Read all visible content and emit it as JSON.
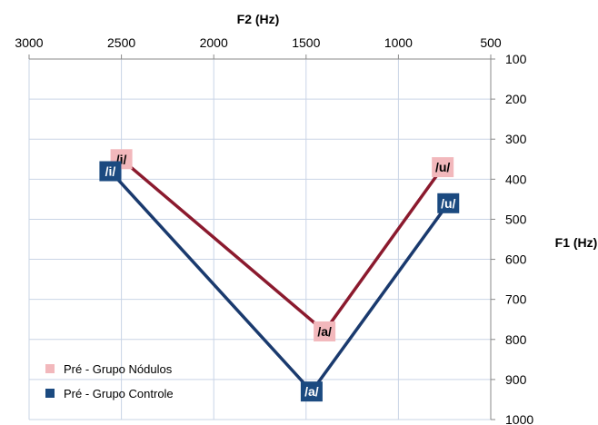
{
  "chart_data": {
    "type": "line",
    "xlabel": "F2 (Hz)",
    "ylabel": "F1 (Hz)",
    "x_reversed": true,
    "y_reversed": true,
    "xlim": [
      3000,
      500
    ],
    "ylim": [
      100,
      1000
    ],
    "x_ticks": [
      3000,
      2500,
      2000,
      1500,
      1000,
      500
    ],
    "y_ticks": [
      100,
      200,
      300,
      400,
      500,
      600,
      700,
      800,
      900,
      1000
    ],
    "grid": true,
    "legend_position": "bottom-left",
    "series": [
      {
        "name": "Pré - Grupo Nódulos",
        "color": "#8B1A2E",
        "marker_color": "#F2B8BC",
        "points": [
          {
            "label": "/i/",
            "x": 2500,
            "y": 350
          },
          {
            "label": "/a/",
            "x": 1400,
            "y": 780
          },
          {
            "label": "/u/",
            "x": 760,
            "y": 370
          }
        ]
      },
      {
        "name": "Pré - Grupo Controle",
        "color": "#1A3A6E",
        "marker_color": "#1B4A80",
        "points": [
          {
            "label": "/i/",
            "x": 2560,
            "y": 380
          },
          {
            "label": "/a/",
            "x": 1470,
            "y": 930
          },
          {
            "label": "/u/",
            "x": 730,
            "y": 460
          }
        ]
      }
    ]
  }
}
